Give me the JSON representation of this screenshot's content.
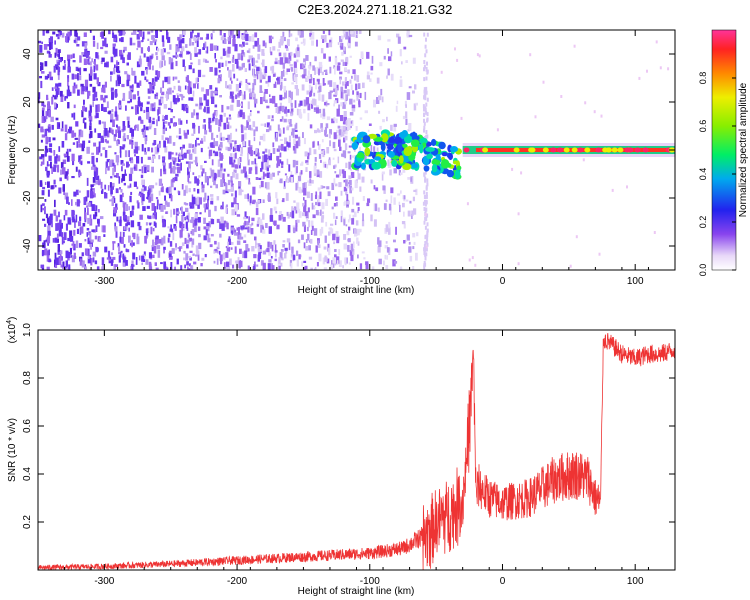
{
  "title": "C2E3.2024.271.18.21.G32",
  "chart_data": [
    {
      "type": "heatmap",
      "xlabel": "Height of straight line (km)",
      "ylabel": "Frequency (Hz)",
      "xlim": [
        -350,
        130
      ],
      "ylim": [
        -50,
        50
      ],
      "x_ticks": [
        -300,
        -200,
        -100,
        0,
        100
      ],
      "y_ticks": [
        -40,
        -20,
        0,
        20,
        40
      ],
      "colorbar": {
        "label": "Normalized spectral amplitude",
        "range": [
          0,
          1
        ],
        "ticks": [
          0.0,
          0.2,
          0.4,
          0.6,
          0.8
        ],
        "tick_labels": [
          "0.0",
          "0.2",
          "0.4",
          "0.6",
          "0.8"
        ]
      },
      "features": {
        "noise_region_x": [
          -350,
          -65
        ],
        "signal_start_x": -110,
        "carrier_line_x": [
          -30,
          130
        ],
        "carrier_freq": 0
      }
    },
    {
      "type": "line",
      "xlabel": "Height of straight line (km)",
      "ylabel": "SNR (10 * v/v)",
      "y_scale_label": "(x10",
      "y_scale_exp": "4",
      "y_scale_close": ")",
      "xlim": [
        -350,
        130
      ],
      "ylim": [
        0,
        1.0
      ],
      "x_ticks": [
        -300,
        -200,
        -100,
        0,
        100
      ],
      "y_ticks": [
        0.2,
        0.4,
        0.6,
        0.8,
        1.0
      ],
      "color": "#ee3333",
      "series": [
        {
          "x": [
            -350,
            -300,
            -250,
            -200,
            -150,
            -100,
            -75,
            -60,
            -50,
            -40,
            -30,
            -25,
            -22,
            -20,
            -18,
            -10,
            0,
            20,
            40,
            55,
            65,
            70,
            74,
            76,
            80,
            90,
            100,
            110,
            120,
            130
          ],
          "y": [
            0.01,
            0.015,
            0.025,
            0.04,
            0.055,
            0.07,
            0.09,
            0.14,
            0.2,
            0.24,
            0.28,
            0.6,
            0.9,
            0.3,
            0.35,
            0.3,
            0.28,
            0.3,
            0.38,
            0.4,
            0.38,
            0.3,
            0.28,
            0.96,
            0.95,
            0.9,
            0.88,
            0.9,
            0.9,
            0.92
          ]
        }
      ]
    }
  ]
}
